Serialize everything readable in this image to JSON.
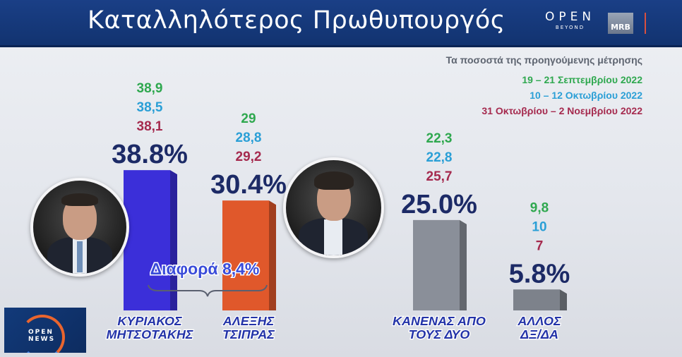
{
  "header": {
    "title": "Καταλληλότερος Πρωθυπουργός",
    "logo_main": "OPEN",
    "logo_sub": "BEYOND",
    "logo_mrb": "MRB"
  },
  "legend": {
    "title": "Τα ποσοστά της προηγούμενης μέτρησης",
    "entries": [
      {
        "label": "19 –  21 Σεπτεμβρίου 2022",
        "color": "#2fa84f"
      },
      {
        "label": "10 –  12 Οκτωβρίου 2022",
        "color": "#2a9fd6"
      },
      {
        "label": "31 Οκτωβρίου –  2 Νοεμβρίου 2022",
        "color": "#a52a4e"
      }
    ]
  },
  "difference_label": "Διαφορά 8,4%",
  "corner_logo": {
    "line1": "OPEN",
    "line2": "NEWS"
  },
  "chart_data": {
    "type": "bar",
    "categories": [
      "ΚΥΡΙΑΚΟΣ ΜΗΤΣΟΤΑΚΗΣ",
      "ΑΛΕΞΗΣ ΤΣΙΠΡΑΣ",
      "ΚΑΝΕΝΑΣ ΑΠΟ ΤΟΥΣ ΔΥΟ",
      "ΑΛΛΟΣ ΔΞ/ΔΑ"
    ],
    "category_lines": [
      [
        "ΚΥΡΙΑΚΟΣ",
        "ΜΗΤΣΟΤΑΚΗΣ"
      ],
      [
        "ΑΛΕΞΗΣ",
        "ΤΣΙΠΡΑΣ"
      ],
      [
        "ΚΑΝΕΝΑΣ ΑΠΟ",
        "ΤΟΥΣ ΔΥΟ"
      ],
      [
        "ΑΛΛΟΣ",
        "ΔΞ/ΔΑ"
      ]
    ],
    "values": [
      38.8,
      30.4,
      25.0,
      5.8
    ],
    "value_labels": [
      "38.8%",
      "30.4%",
      "25.0%",
      "5.8%"
    ],
    "bar_colors": [
      "#3b2fd9",
      "#e0582b",
      "#8a8f99",
      "#7d828b"
    ],
    "previous": [
      {
        "name": "19 –  21 Σεπτεμβρίου 2022",
        "color": "#2fa84f",
        "values": [
          "38,9",
          "29",
          "22,3",
          "9,8"
        ]
      },
      {
        "name": "10 –  12 Οκτωβρίου 2022",
        "color": "#2a9fd6",
        "values": [
          "38,5",
          "28,8",
          "22,8",
          "10"
        ]
      },
      {
        "name": "31 Οκτωβρίου –  2 Νοεμβρίου 2022",
        "color": "#a52a4e",
        "values": [
          "38,1",
          "29,2",
          "25,7",
          "7"
        ]
      }
    ],
    "ylim": [
      0,
      40
    ],
    "grid": false
  }
}
